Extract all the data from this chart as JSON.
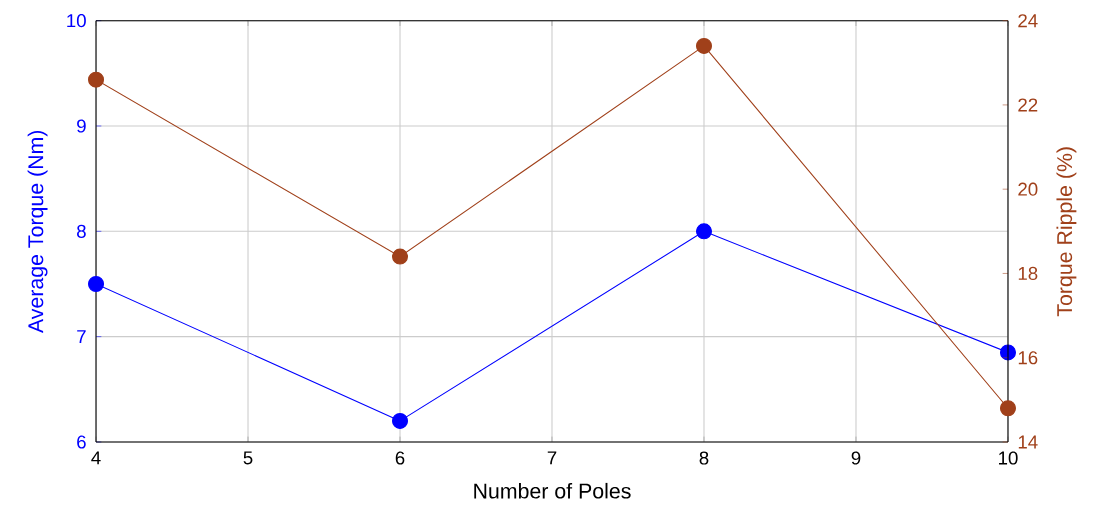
{
  "chart_data": {
    "type": "line",
    "xlabel": "Number of Poles",
    "ylabel": "Average Torque (Nm)",
    "y2label": "Torque Ripple (%)",
    "x": [
      4,
      6,
      8,
      10
    ],
    "series": [
      {
        "color": "#0000ff",
        "values": [
          7.5,
          6.2,
          8.0,
          6.85
        ]
      },
      {
        "color": "#a0401a",
        "axis": "y2",
        "values": [
          22.6,
          18.4,
          23.4,
          14.8
        ]
      }
    ],
    "xlim": [
      4,
      10
    ],
    "xticks": [
      4,
      5,
      6,
      7,
      8,
      9,
      10
    ],
    "ylim": [
      6,
      10
    ],
    "yticks": [
      6,
      7,
      8,
      9,
      10
    ],
    "y2lim": [
      14,
      24
    ],
    "y2ticks": [
      14,
      16,
      18,
      20,
      22,
      24
    ],
    "grid": true,
    "marker": "circle",
    "line_style": "solid"
  }
}
